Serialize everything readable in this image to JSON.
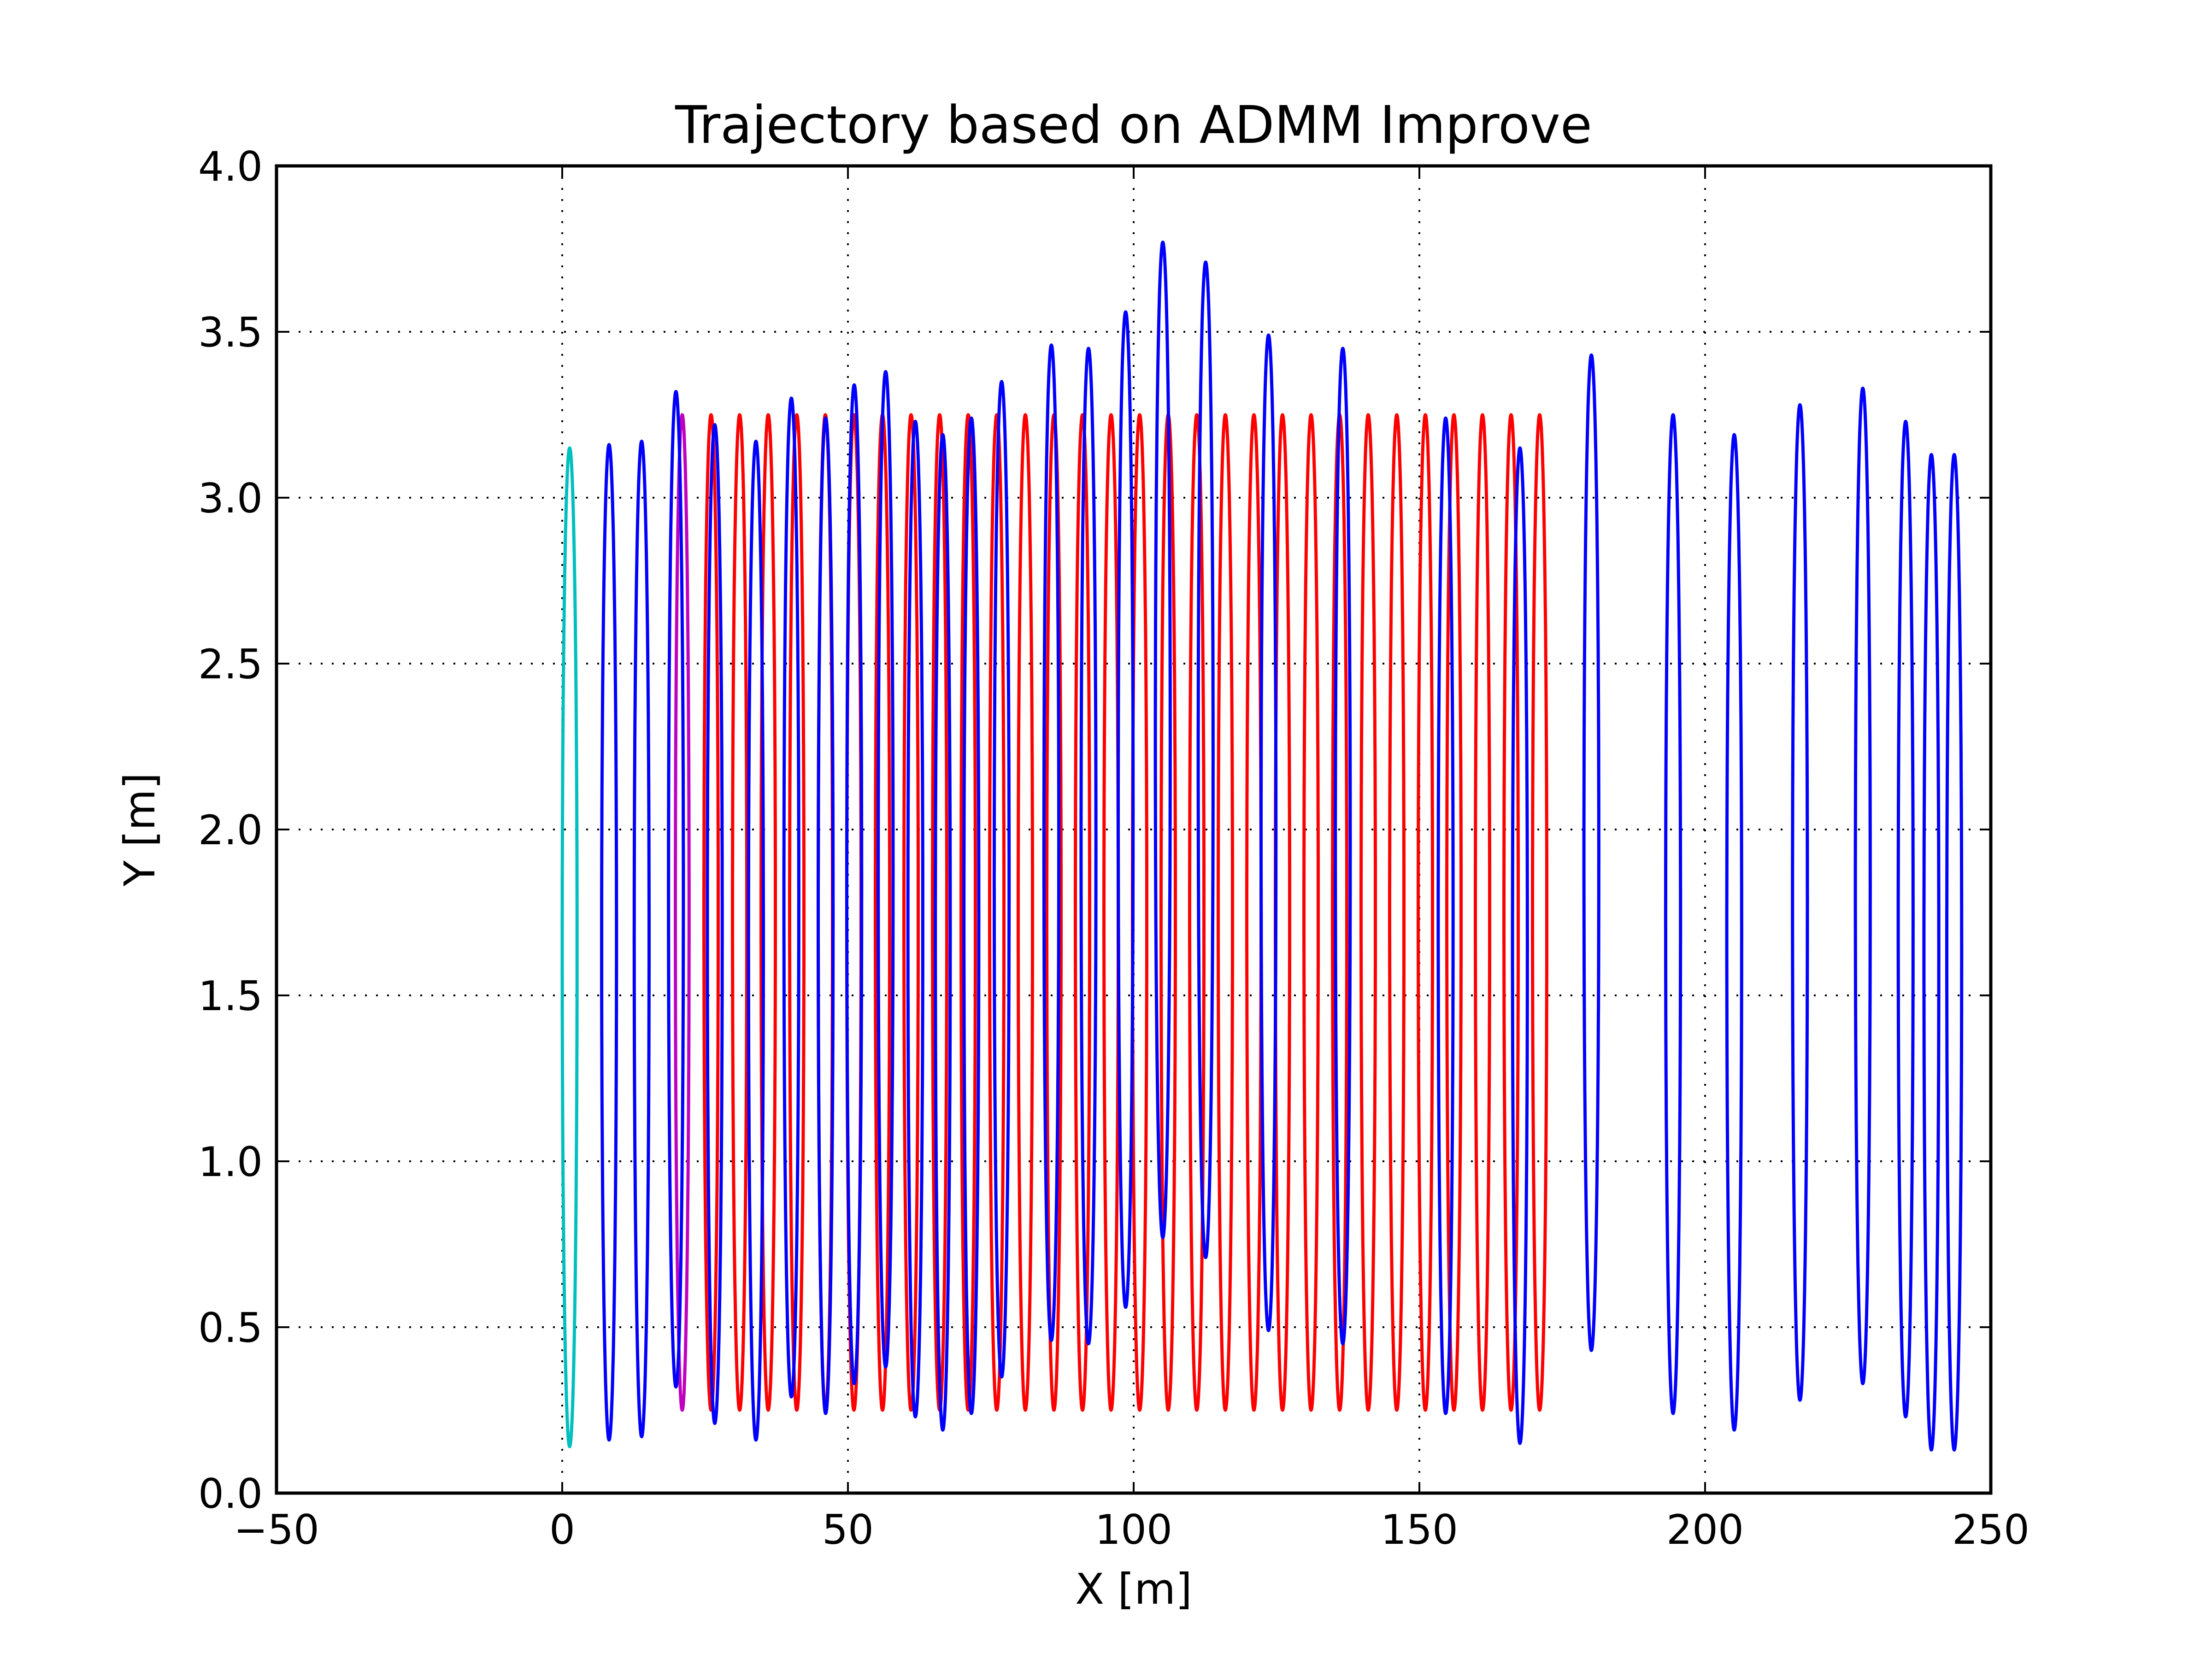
{
  "chart_data": {
    "type": "line",
    "title": "Trajectory based on ADMM Improve",
    "xlabel": "X [m]",
    "ylabel": "Y [m]",
    "xlim": [
      -50,
      250
    ],
    "ylim": [
      0.0,
      4.0
    ],
    "x_ticks": [
      "−50",
      "0",
      "50",
      "100",
      "150",
      "200",
      "250"
    ],
    "y_ticks": [
      "0.0",
      "0.5",
      "1.0",
      "1.5",
      "2.0",
      "2.5",
      "3.0",
      "3.5",
      "4.0"
    ],
    "grid": true,
    "legend": "none",
    "series": [
      {
        "color": "#00bfbf",
        "turns": [
          {
            "x": 0.0,
            "w": 2.6,
            "top": 3.15,
            "bottom": 0.14
          }
        ]
      },
      {
        "color": "#bf00bf",
        "turns": [
          {
            "x": 19.8,
            "w": 2.4,
            "top": 3.25,
            "bottom": 0.25
          }
        ]
      },
      {
        "color": "#ff0000",
        "turns": [
          {
            "x": 24.8,
            "w": 2.5,
            "top": 3.25,
            "bottom": 0.25
          },
          {
            "x": 29.8,
            "w": 2.5,
            "top": 3.25,
            "bottom": 0.25
          },
          {
            "x": 34.8,
            "w": 2.5,
            "top": 3.25,
            "bottom": 0.25
          },
          {
            "x": 39.8,
            "w": 2.5,
            "top": 3.25,
            "bottom": 0.25
          },
          {
            "x": 44.8,
            "w": 2.5,
            "top": 3.25,
            "bottom": 0.25
          },
          {
            "x": 49.8,
            "w": 2.5,
            "top": 3.25,
            "bottom": 0.25
          },
          {
            "x": 54.8,
            "w": 2.5,
            "top": 3.25,
            "bottom": 0.25
          },
          {
            "x": 59.8,
            "w": 2.5,
            "top": 3.25,
            "bottom": 0.25
          },
          {
            "x": 64.8,
            "w": 2.5,
            "top": 3.25,
            "bottom": 0.25
          },
          {
            "x": 69.8,
            "w": 2.5,
            "top": 3.25,
            "bottom": 0.25
          },
          {
            "x": 74.8,
            "w": 2.5,
            "top": 3.25,
            "bottom": 0.25
          },
          {
            "x": 79.8,
            "w": 2.5,
            "top": 3.25,
            "bottom": 0.25
          },
          {
            "x": 84.8,
            "w": 2.5,
            "top": 3.25,
            "bottom": 0.25
          },
          {
            "x": 89.8,
            "w": 2.5,
            "top": 3.25,
            "bottom": 0.25
          },
          {
            "x": 94.8,
            "w": 2.5,
            "top": 3.25,
            "bottom": 0.25
          },
          {
            "x": 99.8,
            "w": 2.5,
            "top": 3.25,
            "bottom": 0.25
          },
          {
            "x": 104.8,
            "w": 2.5,
            "top": 3.25,
            "bottom": 0.25
          },
          {
            "x": 109.8,
            "w": 2.5,
            "top": 3.25,
            "bottom": 0.25
          },
          {
            "x": 114.8,
            "w": 2.5,
            "top": 3.25,
            "bottom": 0.25
          },
          {
            "x": 119.8,
            "w": 2.5,
            "top": 3.25,
            "bottom": 0.25
          },
          {
            "x": 124.8,
            "w": 2.5,
            "top": 3.25,
            "bottom": 0.25
          },
          {
            "x": 129.8,
            "w": 2.5,
            "top": 3.25,
            "bottom": 0.25
          },
          {
            "x": 134.8,
            "w": 2.5,
            "top": 3.25,
            "bottom": 0.25
          },
          {
            "x": 139.8,
            "w": 2.5,
            "top": 3.25,
            "bottom": 0.25
          },
          {
            "x": 144.8,
            "w": 2.5,
            "top": 3.25,
            "bottom": 0.25
          },
          {
            "x": 149.8,
            "w": 2.5,
            "top": 3.25,
            "bottom": 0.25
          },
          {
            "x": 154.8,
            "w": 2.5,
            "top": 3.25,
            "bottom": 0.25
          },
          {
            "x": 159.8,
            "w": 2.5,
            "top": 3.25,
            "bottom": 0.25
          },
          {
            "x": 164.8,
            "w": 2.5,
            "top": 3.25,
            "bottom": 0.25
          },
          {
            "x": 169.8,
            "w": 2.5,
            "top": 3.25,
            "bottom": 0.25
          }
        ]
      },
      {
        "color": "#0000ff",
        "turns": [
          {
            "x": 6.9,
            "w": 2.6,
            "top": 3.16,
            "bottom": 0.16
          },
          {
            "x": 12.6,
            "w": 2.6,
            "top": 3.17,
            "bottom": 0.17
          },
          {
            "x": 18.6,
            "w": 2.6,
            "top": 3.32,
            "bottom": 0.32
          },
          {
            "x": 25.4,
            "w": 2.6,
            "top": 3.22,
            "bottom": 0.21
          },
          {
            "x": 32.6,
            "w": 2.6,
            "top": 3.17,
            "bottom": 0.16
          },
          {
            "x": 38.8,
            "w": 2.6,
            "top": 3.3,
            "bottom": 0.29
          },
          {
            "x": 44.8,
            "w": 2.6,
            "top": 3.24,
            "bottom": 0.24
          },
          {
            "x": 49.8,
            "w": 2.6,
            "top": 3.34,
            "bottom": 0.33
          },
          {
            "x": 55.3,
            "w": 2.6,
            "top": 3.38,
            "bottom": 0.38
          },
          {
            "x": 60.5,
            "w": 2.6,
            "top": 3.23,
            "bottom": 0.23
          },
          {
            "x": 65.3,
            "w": 2.6,
            "top": 3.19,
            "bottom": 0.19
          },
          {
            "x": 70.3,
            "w": 2.6,
            "top": 3.24,
            "bottom": 0.24
          },
          {
            "x": 75.6,
            "w": 2.6,
            "top": 3.35,
            "bottom": 0.35
          },
          {
            "x": 84.3,
            "w": 2.6,
            "top": 3.46,
            "bottom": 0.46
          },
          {
            "x": 90.8,
            "w": 2.6,
            "top": 3.45,
            "bottom": 0.45
          },
          {
            "x": 97.3,
            "w": 2.6,
            "top": 3.56,
            "bottom": 0.56
          },
          {
            "x": 103.8,
            "w": 2.6,
            "top": 3.77,
            "bottom": 0.77
          },
          {
            "x": 111.3,
            "w": 2.6,
            "top": 3.71,
            "bottom": 0.71
          },
          {
            "x": 122.3,
            "w": 2.6,
            "top": 3.49,
            "bottom": 0.49
          },
          {
            "x": 135.3,
            "w": 2.6,
            "top": 3.45,
            "bottom": 0.45
          },
          {
            "x": 153.3,
            "w": 2.6,
            "top": 3.24,
            "bottom": 0.24
          },
          {
            "x": 166.3,
            "w": 2.6,
            "top": 3.15,
            "bottom": 0.15
          },
          {
            "x": 178.8,
            "w": 2.6,
            "top": 3.43,
            "bottom": 0.43
          },
          {
            "x": 193.1,
            "w": 2.6,
            "top": 3.25,
            "bottom": 0.24
          },
          {
            "x": 203.8,
            "w": 2.6,
            "top": 3.19,
            "bottom": 0.19
          },
          {
            "x": 215.3,
            "w": 2.6,
            "top": 3.28,
            "bottom": 0.28
          },
          {
            "x": 226.3,
            "w": 2.6,
            "top": 3.33,
            "bottom": 0.33
          },
          {
            "x": 233.8,
            "w": 2.6,
            "top": 3.23,
            "bottom": 0.23
          },
          {
            "x": 238.3,
            "w": 2.6,
            "top": 3.13,
            "bottom": 0.13
          },
          {
            "x": 242.3,
            "w": 2.6,
            "top": 3.13,
            "bottom": 0.13
          }
        ]
      }
    ]
  }
}
